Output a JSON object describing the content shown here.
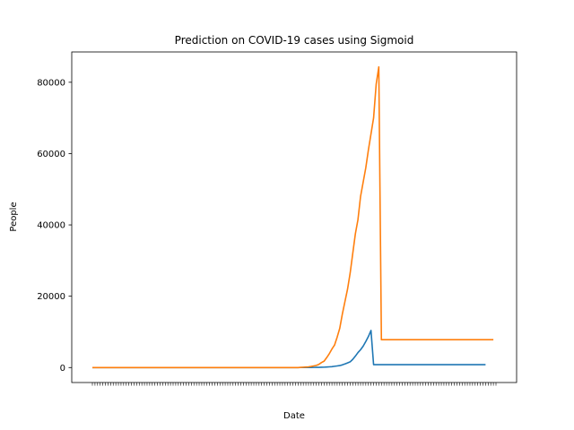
{
  "chart_data": {
    "type": "line",
    "title": "Prediction on COVID-19 cases using Sigmoid",
    "xlabel": "Date",
    "ylabel": "People",
    "ylim": [
      -4200,
      88500
    ],
    "yticks": [
      0,
      20000,
      40000,
      60000,
      80000
    ],
    "grid": false,
    "n_points": 156,
    "series": [
      {
        "color": "#1f77b4",
        "values": [
          0,
          0,
          0,
          0,
          0,
          0,
          0,
          0,
          0,
          0,
          0,
          0,
          0,
          0,
          0,
          0,
          0,
          0,
          0,
          0,
          0,
          0,
          0,
          0,
          0,
          0,
          0,
          0,
          0,
          0,
          0,
          0,
          0,
          0,
          0,
          0,
          0,
          0,
          0,
          0,
          0,
          0,
          0,
          0,
          0,
          0,
          0,
          0,
          0,
          0,
          0,
          0,
          0,
          0,
          0,
          0,
          0,
          0,
          0,
          0,
          0,
          0,
          0,
          0,
          0,
          0,
          0,
          0,
          0,
          0,
          0,
          0,
          0,
          0,
          0,
          0,
          0,
          0,
          0,
          0,
          5,
          10,
          15,
          20,
          30,
          40,
          50,
          60,
          80,
          100,
          150,
          200,
          250,
          350,
          450,
          550,
          750,
          1000,
          1300,
          1600,
          2300,
          3200,
          4200,
          5000,
          6000,
          7300,
          8700,
          10400,
          800,
          800,
          800,
          800,
          800,
          800,
          800,
          800,
          800,
          800,
          800,
          800,
          800,
          800,
          800,
          800,
          800,
          800,
          800,
          800,
          800,
          800,
          800,
          800,
          800,
          800,
          800,
          800,
          800,
          800,
          800,
          800,
          800,
          800,
          800,
          800,
          800,
          800,
          800,
          800,
          800,
          800,
          800,
          800
        ]
      },
      {
        "color": "#ff7f0e",
        "values": [
          0,
          0,
          0,
          0,
          0,
          0,
          0,
          0,
          0,
          0,
          0,
          0,
          0,
          0,
          0,
          0,
          0,
          0,
          0,
          0,
          0,
          0,
          0,
          0,
          0,
          0,
          0,
          0,
          0,
          0,
          0,
          0,
          0,
          0,
          0,
          0,
          0,
          0,
          0,
          0,
          0,
          0,
          0,
          0,
          0,
          0,
          0,
          0,
          0,
          0,
          0,
          0,
          0,
          0,
          0,
          0,
          0,
          0,
          0,
          0,
          0,
          0,
          0,
          0,
          0,
          0,
          0,
          0,
          0,
          0,
          0,
          0,
          0,
          0,
          0,
          0,
          0,
          0,
          0,
          0,
          50,
          100,
          150,
          200,
          300,
          450,
          600,
          900,
          1400,
          1800,
          2800,
          3900,
          5200,
          6300,
          8500,
          11000,
          15000,
          18500,
          22000,
          26500,
          32000,
          37500,
          41500,
          48000,
          52000,
          56000,
          61000,
          65500,
          70000,
          79500,
          84300,
          7800,
          7800,
          7800,
          7800,
          7800,
          7800,
          7800,
          7800,
          7800,
          7800,
          7800,
          7800,
          7800,
          7800,
          7800,
          7800,
          7800,
          7800,
          7800,
          7800,
          7800,
          7800,
          7800,
          7800,
          7800,
          7800,
          7800,
          7800,
          7800,
          7800,
          7800,
          7800,
          7800,
          7800,
          7800,
          7800,
          7800,
          7800,
          7800,
          7800,
          7800,
          7800,
          7800,
          7800
        ]
      }
    ]
  }
}
